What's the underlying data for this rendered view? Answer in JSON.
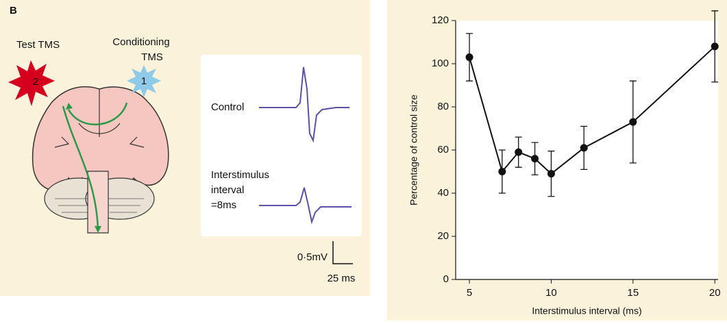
{
  "panel_label": "B",
  "diagram": {
    "test_label": "Test TMS",
    "test_number": "2",
    "conditioning_label": [
      "Conditioning",
      "TMS"
    ],
    "conditioning_number": "1",
    "control_label": "Control",
    "interval_label": [
      "Interstimulus",
      "interval",
      "=8ms"
    ],
    "scale_voltage": "0·5mV",
    "scale_time": "25 ms"
  },
  "chart_data": {
    "type": "line",
    "x_label": "Interstimulus interval (ms)",
    "y_label": "Percentage of control size",
    "x": [
      5,
      7,
      8,
      9,
      10,
      12,
      15,
      20
    ],
    "series": [
      {
        "color": "#111111",
        "values": [
          103,
          50,
          59,
          56,
          49,
          61,
          73,
          108
        ],
        "errors": [
          11,
          10,
          7,
          7.5,
          10.5,
          10,
          19,
          16.5
        ]
      }
    ],
    "xlim": [
      4.16,
      20.2
    ],
    "xticks": [
      5,
      10,
      15,
      20
    ],
    "ylim": [
      0,
      120
    ],
    "yticks": [
      0,
      20,
      40,
      60,
      80,
      100,
      120
    ]
  }
}
